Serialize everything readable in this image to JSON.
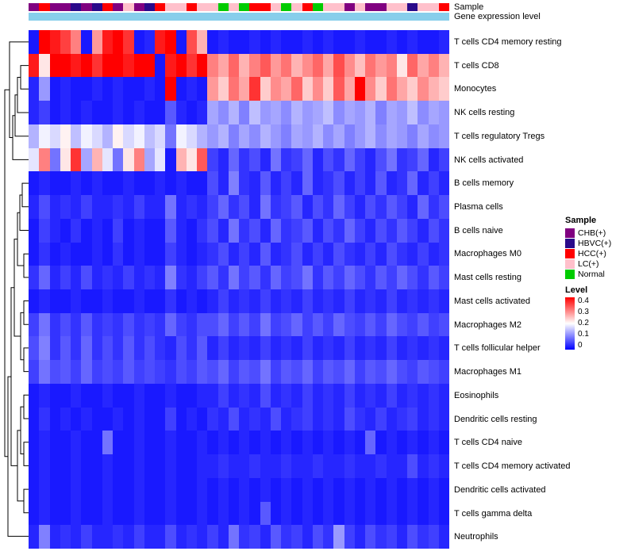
{
  "annotation": {
    "sample_label": "Sample",
    "expression_label": "Gene expression level",
    "expression_bar_color": "#87CEEB"
  },
  "sample_colors": {
    "CHB(+)": "#800080",
    "HBVC(+)": "#2A0A8A",
    "HCC(+)": "#FF0000",
    "LC(+)": "#FFC0CB",
    "Normal": "#00CC00"
  },
  "legend": {
    "sample_title": "Sample",
    "sample_entries": [
      {
        "label": "CHB(+)",
        "color": "#800080"
      },
      {
        "label": "HBVC(+)",
        "color": "#2A0A8A"
      },
      {
        "label": "HCC(+)",
        "color": "#FF0000"
      },
      {
        "label": "LC(+)",
        "color": "#FFC0CB"
      },
      {
        "label": "Normal",
        "color": "#00CC00"
      }
    ],
    "level_title": "Level",
    "level_ticks": [
      "0.4",
      "0.3",
      "0.2",
      "0.1",
      "0"
    ]
  },
  "chart_data": {
    "type": "heatmap",
    "rows": [
      "T cells CD4 memory resting",
      "T cells CD8",
      "Monocytes",
      "NK cells resting",
      "T cells regulatory  Tregs",
      "NK cells activated",
      "B cells memory",
      "Plasma cells",
      "B cells naive",
      "Macrophages M0",
      "Mast cells resting",
      "Mast cells activated",
      "Macrophages M2",
      "T cells follicular helper",
      "Macrophages M1",
      "Eosinophils",
      "Dendritic cells resting",
      "T cells CD4 naive",
      "T cells CD4 memory activated",
      "Dendritic cells activated",
      "T cells gamma delta",
      "Neutrophils"
    ],
    "column_samples": [
      "CHB(+)",
      "HCC(+)",
      "CHB(+)",
      "CHB(+)",
      "HBVC(+)",
      "CHB(+)",
      "HBVC(+)",
      "HCC(+)",
      "CHB(+)",
      "LC(+)",
      "CHB(+)",
      "HBVC(+)",
      "HCC(+)",
      "LC(+)",
      "LC(+)",
      "HCC(+)",
      "LC(+)",
      "LC(+)",
      "Normal",
      "LC(+)",
      "Normal",
      "HCC(+)",
      "HCC(+)",
      "LC(+)",
      "Normal",
      "LC(+)",
      "HCC(+)",
      "Normal",
      "LC(+)",
      "LC(+)",
      "CHB(+)",
      "LC(+)",
      "CHB(+)",
      "CHB(+)",
      "LC(+)",
      "LC(+)",
      "HBVC(+)",
      "LC(+)",
      "LC(+)",
      "HCC(+)"
    ],
    "colorscale": {
      "min": 0,
      "max": 0.4,
      "low": "#0000FF",
      "mid": "#FFFFFF",
      "high": "#FF0000"
    },
    "values": [
      [
        0.02,
        0.4,
        0.38,
        0.35,
        0.3,
        0.02,
        0.28,
        0.38,
        0.4,
        0.36,
        0.02,
        0.03,
        0.38,
        0.4,
        0.02,
        0.34,
        0.26,
        0.02,
        0.03,
        0.02,
        0.02,
        0.03,
        0.02,
        0.03,
        0.02,
        0.02,
        0.03,
        0.02,
        0.03,
        0.02,
        0.02,
        0.03,
        0.02,
        0.02,
        0.03,
        0.02,
        0.03,
        0.02,
        0.02,
        0.03
      ],
      [
        0.38,
        0.22,
        0.4,
        0.4,
        0.38,
        0.4,
        0.36,
        0.4,
        0.4,
        0.38,
        0.4,
        0.4,
        0.02,
        0.38,
        0.4,
        0.36,
        0.4,
        0.3,
        0.27,
        0.32,
        0.26,
        0.3,
        0.33,
        0.28,
        0.31,
        0.26,
        0.29,
        0.32,
        0.27,
        0.34,
        0.29,
        0.25,
        0.31,
        0.28,
        0.3,
        0.22,
        0.32,
        0.27,
        0.3,
        0.26
      ],
      [
        0.03,
        0.12,
        0.02,
        0.03,
        0.02,
        0.02,
        0.03,
        0.02,
        0.03,
        0.02,
        0.02,
        0.03,
        0.02,
        0.4,
        0.02,
        0.03,
        0.02,
        0.28,
        0.24,
        0.31,
        0.27,
        0.36,
        0.24,
        0.29,
        0.27,
        0.32,
        0.24,
        0.29,
        0.24,
        0.33,
        0.27,
        0.4,
        0.29,
        0.24,
        0.31,
        0.27,
        0.24,
        0.29,
        0.26,
        0.24
      ],
      [
        0.03,
        0.05,
        0.02,
        0.03,
        0.02,
        0.03,
        0.02,
        0.02,
        0.03,
        0.02,
        0.03,
        0.02,
        0.02,
        0.07,
        0.03,
        0.02,
        0.03,
        0.13,
        0.11,
        0.14,
        0.1,
        0.15,
        0.12,
        0.13,
        0.11,
        0.14,
        0.12,
        0.13,
        0.15,
        0.11,
        0.13,
        0.12,
        0.14,
        0.1,
        0.13,
        0.12,
        0.15,
        0.11,
        0.13,
        0.12
      ],
      [
        0.14,
        0.19,
        0.17,
        0.21,
        0.15,
        0.19,
        0.17,
        0.14,
        0.21,
        0.17,
        0.19,
        0.15,
        0.17,
        0.09,
        0.19,
        0.17,
        0.14,
        0.12,
        0.14,
        0.1,
        0.13,
        0.11,
        0.14,
        0.12,
        0.1,
        0.13,
        0.12,
        0.14,
        0.11,
        0.13,
        0.1,
        0.12,
        0.14,
        0.11,
        0.13,
        0.12,
        0.1,
        0.13,
        0.11,
        0.12
      ],
      [
        0.18,
        0.3,
        0.09,
        0.22,
        0.36,
        0.13,
        0.26,
        0.18,
        0.09,
        0.22,
        0.3,
        0.13,
        0.18,
        0.02,
        0.26,
        0.22,
        0.33,
        0.05,
        0.03,
        0.08,
        0.04,
        0.06,
        0.03,
        0.09,
        0.04,
        0.05,
        0.08,
        0.03,
        0.06,
        0.04,
        0.08,
        0.05,
        0.03,
        0.06,
        0.09,
        0.04,
        0.05,
        0.08,
        0.03,
        0.05
      ],
      [
        0.02,
        0.03,
        0.02,
        0.02,
        0.03,
        0.02,
        0.03,
        0.02,
        0.02,
        0.03,
        0.02,
        0.02,
        0.03,
        0.02,
        0.03,
        0.02,
        0.02,
        0.06,
        0.03,
        0.1,
        0.04,
        0.03,
        0.07,
        0.03,
        0.05,
        0.03,
        0.08,
        0.03,
        0.04,
        0.06,
        0.03,
        0.05,
        0.03,
        0.07,
        0.03,
        0.04,
        0.08,
        0.03,
        0.05,
        0.03
      ],
      [
        0.03,
        0.06,
        0.03,
        0.04,
        0.03,
        0.05,
        0.03,
        0.03,
        0.04,
        0.03,
        0.05,
        0.03,
        0.03,
        0.09,
        0.03,
        0.04,
        0.03,
        0.05,
        0.08,
        0.04,
        0.06,
        0.03,
        0.09,
        0.04,
        0.05,
        0.07,
        0.03,
        0.06,
        0.04,
        0.08,
        0.05,
        0.03,
        0.06,
        0.04,
        0.07,
        0.05,
        0.03,
        0.08,
        0.04,
        0.06
      ],
      [
        0.02,
        0.05,
        0.03,
        0.02,
        0.04,
        0.02,
        0.03,
        0.02,
        0.05,
        0.02,
        0.03,
        0.02,
        0.02,
        0.07,
        0.03,
        0.02,
        0.04,
        0.06,
        0.03,
        0.09,
        0.04,
        0.06,
        0.03,
        0.08,
        0.04,
        0.05,
        0.07,
        0.03,
        0.06,
        0.04,
        0.08,
        0.05,
        0.03,
        0.06,
        0.04,
        0.07,
        0.05,
        0.03,
        0.06,
        0.04
      ],
      [
        0.02,
        0.04,
        0.02,
        0.03,
        0.02,
        0.02,
        0.03,
        0.02,
        0.04,
        0.02,
        0.03,
        0.02,
        0.02,
        0.05,
        0.03,
        0.02,
        0.03,
        0.04,
        0.06,
        0.03,
        0.05,
        0.03,
        0.07,
        0.03,
        0.04,
        0.06,
        0.03,
        0.05,
        0.03,
        0.06,
        0.04,
        0.03,
        0.05,
        0.03,
        0.06,
        0.04,
        0.03,
        0.05,
        0.03,
        0.04
      ],
      [
        0.04,
        0.08,
        0.03,
        0.05,
        0.03,
        0.06,
        0.03,
        0.04,
        0.03,
        0.05,
        0.03,
        0.04,
        0.03,
        0.1,
        0.04,
        0.03,
        0.05,
        0.07,
        0.04,
        0.09,
        0.05,
        0.07,
        0.04,
        0.08,
        0.05,
        0.06,
        0.09,
        0.04,
        0.07,
        0.05,
        0.08,
        0.06,
        0.04,
        0.07,
        0.05,
        0.08,
        0.06,
        0.04,
        0.07,
        0.05
      ],
      [
        0.02,
        0.03,
        0.02,
        0.02,
        0.03,
        0.02,
        0.02,
        0.03,
        0.02,
        0.02,
        0.03,
        0.02,
        0.02,
        0.04,
        0.02,
        0.03,
        0.02,
        0.03,
        0.05,
        0.03,
        0.04,
        0.03,
        0.05,
        0.03,
        0.04,
        0.03,
        0.05,
        0.03,
        0.04,
        0.03,
        0.05,
        0.03,
        0.04,
        0.03,
        0.05,
        0.03,
        0.04,
        0.03,
        0.04,
        0.03
      ],
      [
        0.05,
        0.09,
        0.04,
        0.06,
        0.04,
        0.07,
        0.04,
        0.05,
        0.04,
        0.06,
        0.04,
        0.05,
        0.04,
        0.08,
        0.05,
        0.04,
        0.06,
        0.06,
        0.08,
        0.05,
        0.07,
        0.05,
        0.09,
        0.05,
        0.06,
        0.08,
        0.05,
        0.07,
        0.05,
        0.08,
        0.06,
        0.05,
        0.07,
        0.05,
        0.08,
        0.06,
        0.05,
        0.07,
        0.05,
        0.06
      ],
      [
        0.06,
        0.1,
        0.04,
        0.07,
        0.04,
        0.08,
        0.04,
        0.06,
        0.04,
        0.07,
        0.04,
        0.06,
        0.04,
        0.03,
        0.06,
        0.04,
        0.07,
        0.03,
        0.05,
        0.03,
        0.04,
        0.03,
        0.05,
        0.03,
        0.04,
        0.03,
        0.05,
        0.03,
        0.04,
        0.03,
        0.05,
        0.03,
        0.04,
        0.03,
        0.05,
        0.03,
        0.04,
        0.03,
        0.04,
        0.03
      ],
      [
        0.05,
        0.09,
        0.06,
        0.07,
        0.05,
        0.08,
        0.05,
        0.06,
        0.05,
        0.07,
        0.05,
        0.06,
        0.05,
        0.04,
        0.06,
        0.05,
        0.07,
        0.06,
        0.08,
        0.05,
        0.07,
        0.06,
        0.09,
        0.05,
        0.07,
        0.06,
        0.08,
        0.05,
        0.07,
        0.06,
        0.08,
        0.05,
        0.07,
        0.06,
        0.08,
        0.06,
        0.05,
        0.07,
        0.06,
        0.05
      ],
      [
        0.02,
        0.03,
        0.02,
        0.02,
        0.03,
        0.02,
        0.02,
        0.03,
        0.02,
        0.02,
        0.03,
        0.02,
        0.02,
        0.03,
        0.02,
        0.02,
        0.03,
        0.03,
        0.05,
        0.03,
        0.04,
        0.03,
        0.06,
        0.03,
        0.04,
        0.03,
        0.05,
        0.03,
        0.04,
        0.03,
        0.05,
        0.03,
        0.04,
        0.03,
        0.05,
        0.03,
        0.04,
        0.03,
        0.04,
        0.03
      ],
      [
        0.02,
        0.04,
        0.02,
        0.03,
        0.02,
        0.03,
        0.02,
        0.02,
        0.03,
        0.02,
        0.03,
        0.02,
        0.02,
        0.05,
        0.02,
        0.03,
        0.02,
        0.04,
        0.03,
        0.06,
        0.03,
        0.04,
        0.03,
        0.06,
        0.03,
        0.04,
        0.05,
        0.03,
        0.04,
        0.03,
        0.06,
        0.04,
        0.03,
        0.05,
        0.03,
        0.04,
        0.05,
        0.03,
        0.04,
        0.03
      ],
      [
        0.02,
        0.03,
        0.02,
        0.02,
        0.03,
        0.02,
        0.02,
        0.09,
        0.02,
        0.02,
        0.03,
        0.02,
        0.02,
        0.03,
        0.02,
        0.02,
        0.03,
        0.02,
        0.03,
        0.02,
        0.03,
        0.02,
        0.03,
        0.02,
        0.03,
        0.02,
        0.03,
        0.02,
        0.03,
        0.02,
        0.03,
        0.02,
        0.08,
        0.02,
        0.03,
        0.02,
        0.03,
        0.02,
        0.03,
        0.02
      ],
      [
        0.02,
        0.03,
        0.02,
        0.02,
        0.03,
        0.02,
        0.02,
        0.03,
        0.02,
        0.02,
        0.03,
        0.02,
        0.02,
        0.03,
        0.02,
        0.02,
        0.03,
        0.03,
        0.04,
        0.03,
        0.03,
        0.04,
        0.03,
        0.03,
        0.04,
        0.03,
        0.03,
        0.04,
        0.03,
        0.03,
        0.04,
        0.03,
        0.03,
        0.04,
        0.03,
        0.03,
        0.06,
        0.03,
        0.04,
        0.03
      ],
      [
        0.02,
        0.03,
        0.02,
        0.02,
        0.03,
        0.02,
        0.02,
        0.03,
        0.02,
        0.02,
        0.03,
        0.02,
        0.02,
        0.03,
        0.02,
        0.02,
        0.03,
        0.02,
        0.03,
        0.02,
        0.03,
        0.02,
        0.03,
        0.02,
        0.03,
        0.02,
        0.03,
        0.02,
        0.03,
        0.02,
        0.03,
        0.02,
        0.03,
        0.02,
        0.03,
        0.02,
        0.03,
        0.02,
        0.03,
        0.02
      ],
      [
        0.02,
        0.03,
        0.02,
        0.02,
        0.03,
        0.02,
        0.02,
        0.03,
        0.02,
        0.02,
        0.03,
        0.02,
        0.02,
        0.03,
        0.02,
        0.02,
        0.03,
        0.02,
        0.03,
        0.02,
        0.03,
        0.02,
        0.07,
        0.02,
        0.03,
        0.02,
        0.03,
        0.02,
        0.03,
        0.02,
        0.03,
        0.02,
        0.03,
        0.02,
        0.03,
        0.02,
        0.03,
        0.02,
        0.03,
        0.02
      ],
      [
        0.03,
        0.1,
        0.03,
        0.04,
        0.03,
        0.05,
        0.03,
        0.03,
        0.04,
        0.03,
        0.05,
        0.03,
        0.03,
        0.06,
        0.03,
        0.04,
        0.03,
        0.05,
        0.03,
        0.09,
        0.04,
        0.05,
        0.03,
        0.07,
        0.04,
        0.05,
        0.03,
        0.06,
        0.04,
        0.12,
        0.05,
        0.03,
        0.06,
        0.04,
        0.05,
        0.03,
        0.06,
        0.04,
        0.05,
        0.03
      ]
    ]
  }
}
